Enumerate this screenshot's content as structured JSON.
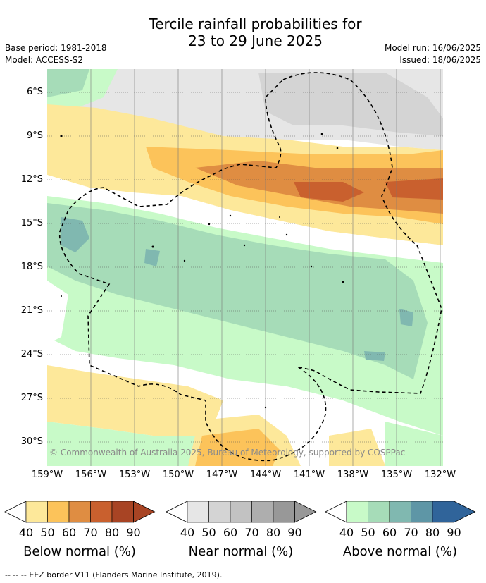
{
  "title_line1": "Tercile rainfall probabilities for",
  "title_line2": "23 to 29 June 2025",
  "base_period": "Base period: 1981-2018",
  "model": "Model: ACCESS-S2",
  "model_run": "Model run: 16/06/2025",
  "issued": "Issued: 18/06/2025",
  "copyright": "© Commonwealth of Australia 2025, Bureau of Meteorology, supported by COSPPac",
  "lat_ticks": [
    "6°S",
    "9°S",
    "12°S",
    "15°S",
    "18°S",
    "21°S",
    "24°S",
    "27°S",
    "30°S"
  ],
  "lon_ticks": [
    "159°W",
    "156°W",
    "153°W",
    "150°W",
    "147°W",
    "144°W",
    "141°W",
    "138°W",
    "135°W",
    "132°W"
  ],
  "legends": [
    {
      "title": "Below normal (%)",
      "labels": [
        "40",
        "50",
        "60",
        "70",
        "80",
        "90"
      ],
      "colors": [
        "#fde89a",
        "#fcc35a",
        "#df8d42",
        "#c9602e",
        "#a84424",
        "#a84424"
      ]
    },
    {
      "title": "Near normal (%)",
      "labels": [
        "40",
        "50",
        "60",
        "70",
        "80",
        "90"
      ],
      "colors": [
        "#e6e6e6",
        "#d4d4d4",
        "#c2c2c2",
        "#aeaeae",
        "#989898",
        "#989898"
      ]
    },
    {
      "title": "Above normal (%)",
      "labels": [
        "40",
        "50",
        "60",
        "70",
        "80",
        "90"
      ],
      "colors": [
        "#c8fac8",
        "#a6dcb8",
        "#80b8b0",
        "#5e96a6",
        "#30649a",
        "#30649a"
      ]
    }
  ],
  "footnote": "--  --  -- EEZ border V11 (Flanders Marine Institute, 2019)."
}
